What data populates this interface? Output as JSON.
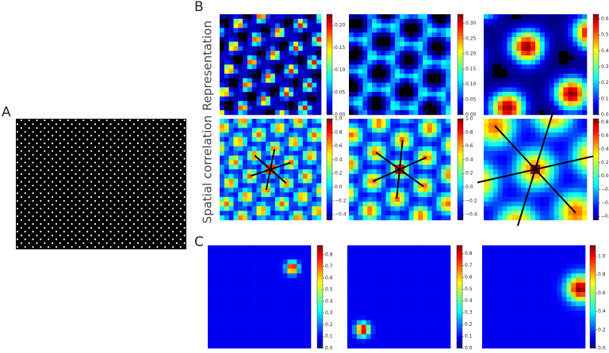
{
  "panel_labels": {
    "A": "A",
    "B": "B",
    "C": "C"
  },
  "row_labels": [
    "Representation",
    "Spatial correlation"
  ],
  "colorbars": [
    {
      "lim": [
        0,
        0.225
      ],
      "ticks": [
        {
          "value": 0,
          "label": "0.00"
        },
        {
          "value": 0.05,
          "label": "0.05"
        },
        {
          "value": 0.1,
          "label": "0.10"
        },
        {
          "value": 0.15,
          "label": "0.15"
        },
        {
          "value": 0.2,
          "label": "0.20"
        }
      ]
    },
    {
      "lim": [
        0,
        0.33
      ],
      "ticks": [
        {
          "value": 0,
          "label": "0.00"
        },
        {
          "value": 0.05,
          "label": "0.05"
        },
        {
          "value": 0.1,
          "label": "0.10"
        },
        {
          "value": 0.15,
          "label": "0.15"
        },
        {
          "value": 0.2,
          "label": "0.20"
        },
        {
          "value": 0.25,
          "label": "0.25"
        },
        {
          "value": 0.3,
          "label": "0.30"
        }
      ]
    },
    {
      "lim": [
        0,
        0.63
      ],
      "ticks": [
        {
          "value": 0,
          "label": "0.0"
        },
        {
          "value": 0.1,
          "label": "0.1"
        },
        {
          "value": 0.2,
          "label": "0.2"
        },
        {
          "value": 0.3,
          "label": "0.3"
        },
        {
          "value": 0.4,
          "label": "0.4"
        },
        {
          "value": 0.5,
          "label": "0.5"
        },
        {
          "value": 0.6,
          "label": "0.6"
        }
      ]
    },
    {
      "lim": [
        -0.48,
        1
      ],
      "ticks": [
        {
          "value": 1,
          "label": "1.0"
        },
        {
          "value": 0.8,
          "label": "0.8"
        },
        {
          "value": 0.6,
          "label": "0.6"
        },
        {
          "value": 0.4,
          "label": "0.4"
        },
        {
          "value": 0.2,
          "label": "0.2"
        },
        {
          "value": 0,
          "label": "0.0"
        },
        {
          "value": -0.2,
          "label": "−0.2"
        },
        {
          "value": -0.4,
          "label": "−0.4"
        }
      ]
    },
    {
      "lim": [
        -0.48,
        1
      ],
      "ticks": [
        {
          "value": 1,
          "label": "1.0"
        },
        {
          "value": 0.8,
          "label": "0.8"
        },
        {
          "value": 0.6,
          "label": "0.6"
        },
        {
          "value": 0.4,
          "label": "0.4"
        },
        {
          "value": 0.2,
          "label": "0.2"
        },
        {
          "value": 0,
          "label": "0.0"
        },
        {
          "value": -0.2,
          "label": "−0.2"
        },
        {
          "value": -0.4,
          "label": "−0.4"
        }
      ]
    },
    {
      "lim": [
        -0.65,
        0.85
      ],
      "ticks": [
        {
          "value": 0.8,
          "label": "0.8"
        },
        {
          "value": 0.6,
          "label": "0.6"
        },
        {
          "value": 0.4,
          "label": "0.4"
        },
        {
          "value": 0.2,
          "label": "0.2"
        },
        {
          "value": 0,
          "label": "0.0"
        },
        {
          "value": -0.2,
          "label": "−0.2"
        },
        {
          "value": -0.4,
          "label": "−0.4"
        },
        {
          "value": -0.6,
          "label": "−0.6"
        }
      ]
    },
    {
      "lim": [
        0,
        0.88
      ],
      "ticks": [
        {
          "value": 0,
          "label": "0.0"
        },
        {
          "value": 0.1,
          "label": "0.1"
        },
        {
          "value": 0.2,
          "label": "0.2"
        },
        {
          "value": 0.3,
          "label": "0.3"
        },
        {
          "value": 0.4,
          "label": "0.4"
        },
        {
          "value": 0.5,
          "label": "0.5"
        },
        {
          "value": 0.6,
          "label": "0.6"
        },
        {
          "value": 0.7,
          "label": "0.7"
        },
        {
          "value": 0.8,
          "label": "0.8"
        }
      ]
    },
    {
      "lim": [
        0,
        0.87
      ],
      "ticks": [
        {
          "value": 0,
          "label": "0.0"
        },
        {
          "value": 0.1,
          "label": "0.1"
        },
        {
          "value": 0.2,
          "label": "0.2"
        },
        {
          "value": 0.3,
          "label": "0.3"
        },
        {
          "value": 0.4,
          "label": "0.4"
        },
        {
          "value": 0.5,
          "label": "0.5"
        },
        {
          "value": 0.6,
          "label": "0.6"
        },
        {
          "value": 0.7,
          "label": "0.7"
        },
        {
          "value": 0.8,
          "label": "0.8"
        }
      ]
    },
    {
      "lim": [
        0,
        1.12
      ],
      "ticks": [
        {
          "value": 0,
          "label": "0.0"
        },
        {
          "value": 0.2,
          "label": "0.2"
        },
        {
          "value": 0.4,
          "label": "0.4"
        },
        {
          "value": 0.6,
          "label": "0.6"
        },
        {
          "value": 0.8,
          "label": "0.8"
        },
        {
          "value": 1,
          "label": "1.0"
        }
      ]
    }
  ]
}
